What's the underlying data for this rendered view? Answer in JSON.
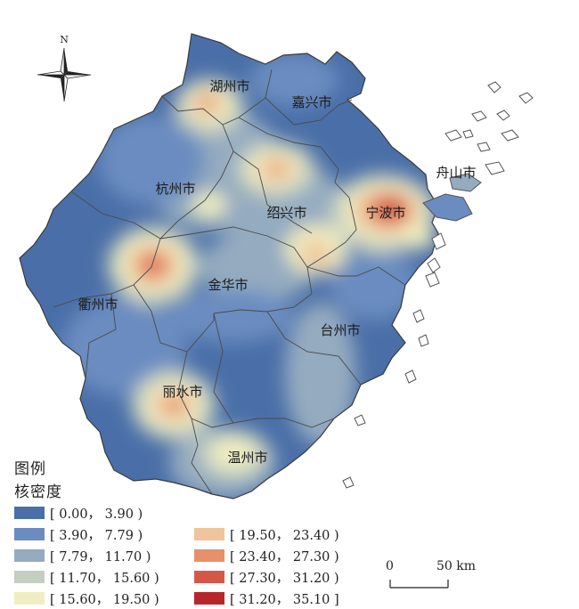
{
  "north_label": "N",
  "cities": [
    {
      "name": "湖州市"
    },
    {
      "name": "嘉兴市"
    },
    {
      "name": "舟山市"
    },
    {
      "name": "杭州市"
    },
    {
      "name": "绍兴市"
    },
    {
      "name": "宁波市"
    },
    {
      "name": "金华市"
    },
    {
      "name": "衢州市"
    },
    {
      "name": "台州市"
    },
    {
      "name": "丽水市"
    },
    {
      "name": "温州市"
    }
  ],
  "legend": {
    "title": "图例",
    "subtitle": "核密度",
    "classes": [
      {
        "label": "[ 0.00， 3.90 )",
        "color": "#4a6fa8"
      },
      {
        "label": "[ 3.90， 7.79 )",
        "color": "#6a8cc0"
      },
      {
        "label": "[ 7.79， 11.70 )",
        "color": "#94abc0"
      },
      {
        "label": "[ 11.70， 15.60 )",
        "color": "#c3cfc0"
      },
      {
        "label": "[ 15.60， 19.50 )",
        "color": "#f0eec0"
      },
      {
        "label": "[ 19.50， 23.40 )",
        "color": "#f0c49a"
      },
      {
        "label": "[ 23.40， 27.30 )",
        "color": "#e6906c"
      },
      {
        "label": "[ 27.30， 31.20 )",
        "color": "#d6574a"
      },
      {
        "label": "[ 31.20， 35.10 ]",
        "color": "#b8262c"
      }
    ]
  },
  "scale": {
    "zero": "0",
    "end": "50 km"
  }
}
